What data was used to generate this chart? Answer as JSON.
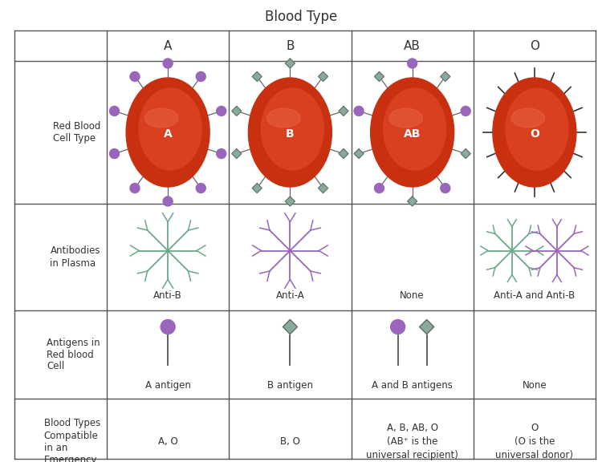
{
  "title": "Blood Type",
  "blood_types": [
    "A",
    "B",
    "AB",
    "O"
  ],
  "row_labels": [
    "Red Blood\nCell Type",
    "Antibodies\nin Plasma",
    "Antigens in\nRed blood\nCell",
    "Blood Types\nCompatible\nin an\nEmergency"
  ],
  "compatible": [
    "A, O",
    "B, O",
    "A, B, AB, O\n(AB⁺ is the\nuniversal recipient)",
    "O\n(O is the\nuniversal donor)"
  ],
  "antigen_labels": [
    "A antigen",
    "B antigen",
    "A and B antigens",
    "None"
  ],
  "antibody_labels": [
    "Anti-B",
    "Anti-A",
    "None",
    "Anti-A and Anti-B"
  ],
  "rbc_labels": [
    "A",
    "B",
    "AB",
    "O"
  ],
  "colors": {
    "rbc_dark": "#c83010",
    "rbc_mid": "#d84020",
    "rbc_light": "#e86040",
    "antigen_a": "#9966bb",
    "antigen_b": "#88aa99",
    "antibody_b": "#6aaa88",
    "antibody_a": "#9966bb",
    "line": "#555555",
    "text": "#333333",
    "background": "#ffffff"
  }
}
